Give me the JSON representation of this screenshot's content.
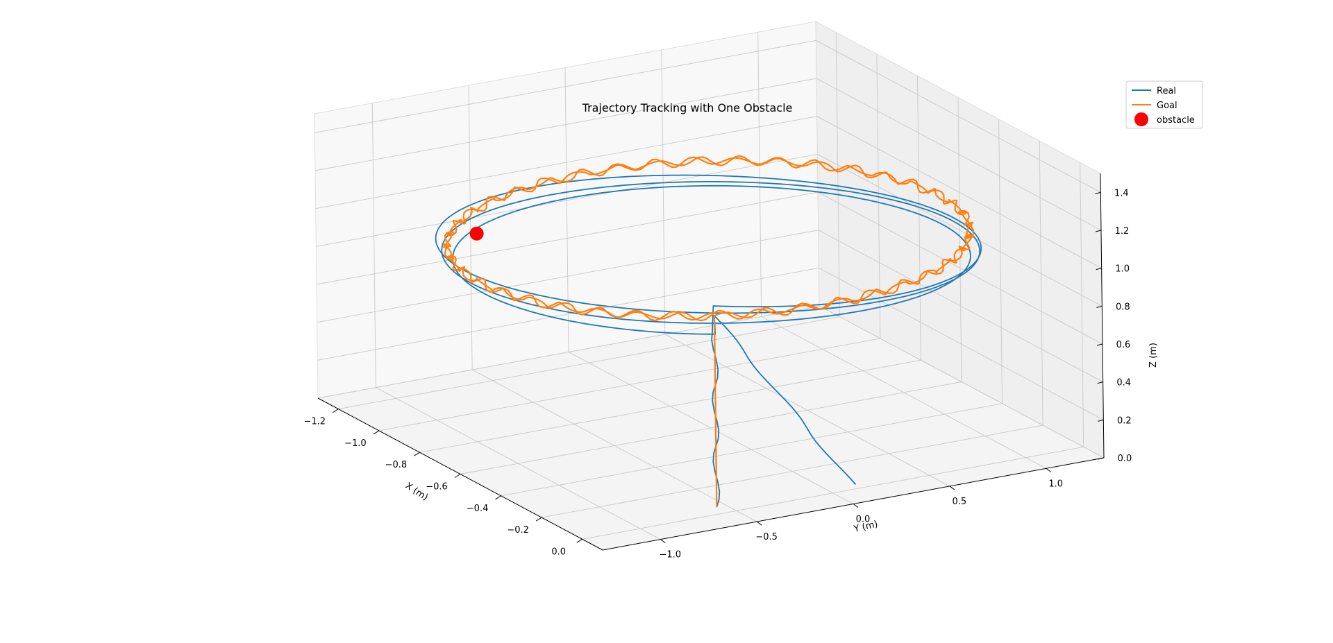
{
  "chart_data": {
    "type": "line",
    "projection": "3d",
    "title": "Trajectory Tracking with One Obstacle",
    "xlabel": "X (m)",
    "ylabel": "Y (m)",
    "zlabel": "Z (m)",
    "xlim": [
      -1.3,
      0.1
    ],
    "ylim": [
      -1.3,
      1.3
    ],
    "zlim": [
      0.0,
      1.5
    ],
    "xticks": [
      -1.2,
      -1.0,
      -0.8,
      -0.6,
      -0.4,
      -0.2,
      0.0
    ],
    "yticks": [
      -1.0,
      -0.5,
      0.0,
      0.5,
      1.0
    ],
    "zticks": [
      0.0,
      0.2,
      0.4,
      0.6,
      0.8,
      1.0,
      1.2,
      1.4
    ],
    "xtick_labels": [
      "−1.2",
      "−1.0",
      "−0.8",
      "−0.6",
      "−0.4",
      "−0.2",
      "0.0"
    ],
    "ytick_labels": [
      "−1.0",
      "−0.5",
      "0.0",
      "0.5",
      "1.0"
    ],
    "ztick_labels": [
      "0.0",
      "0.2",
      "0.4",
      "0.6",
      "0.8",
      "1.0",
      "1.2",
      "1.4"
    ],
    "grid": true,
    "legend": {
      "placement": "top-right",
      "entries": [
        {
          "label": "Real",
          "color": "#1f77b4",
          "marker": "line"
        },
        {
          "label": "Goal",
          "color": "#ff7f0e",
          "marker": "line"
        },
        {
          "label": "obstacle",
          "color": "#ff0000",
          "marker": "dot"
        }
      ]
    },
    "series": [
      {
        "name": "Real",
        "color": "#1f77b4",
        "laps": 3,
        "path_center": [
          -0.6,
          0.0
        ],
        "path_radius": [
          0.6,
          1.2
        ],
        "cruise_z": 1.0,
        "start": [
          -0.05,
          -0.55,
          0.0
        ],
        "end": [
          -0.05,
          0.15,
          0.0
        ]
      },
      {
        "name": "Goal",
        "color": "#ff7f0e",
        "laps": 2,
        "path_center": [
          -0.6,
          0.0
        ],
        "path_radius": [
          0.6,
          1.2
        ],
        "cruise_z": 1.0,
        "start": [
          -0.05,
          -0.55,
          0.0
        ]
      }
    ],
    "obstacle": {
      "name": "obstacle",
      "x": -0.6,
      "y": -1.2,
      "z": 1.25,
      "color": "#ff0000"
    }
  }
}
